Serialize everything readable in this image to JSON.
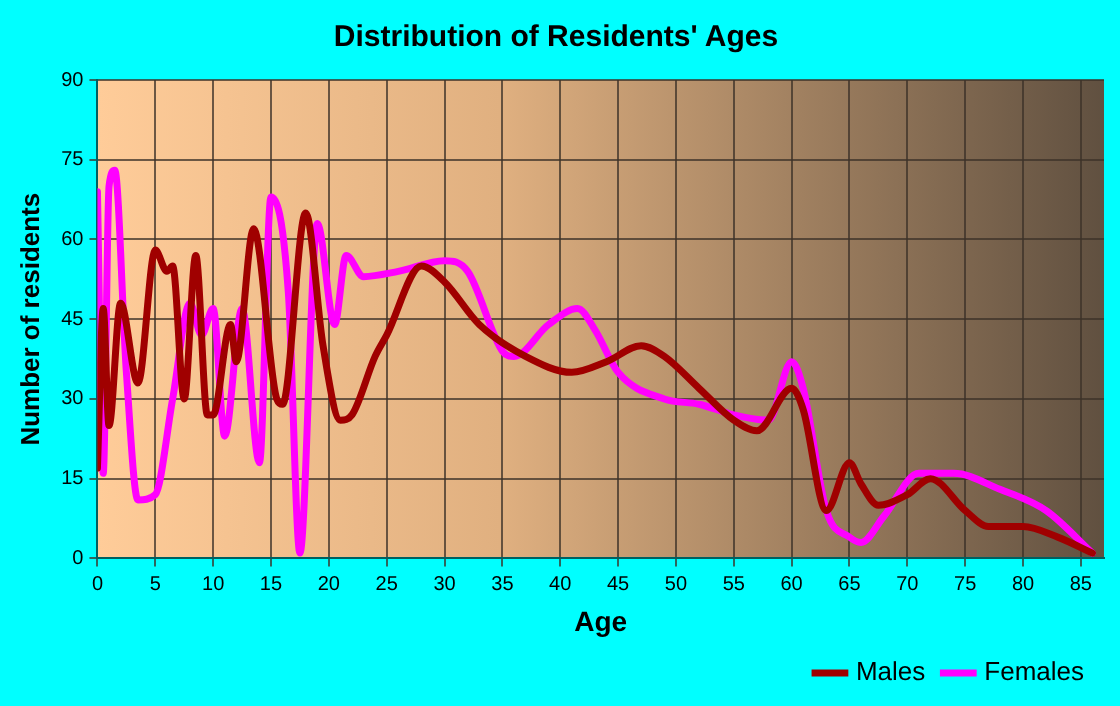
{
  "chart_data": {
    "type": "line",
    "title": "Distribution of Residents' Ages",
    "xlabel": "Age",
    "ylabel": "Number of residents",
    "xlim": [
      0,
      87
    ],
    "xticks": [
      0,
      5,
      10,
      15,
      20,
      25,
      30,
      35,
      40,
      45,
      50,
      55,
      60,
      65,
      70,
      75,
      80,
      85
    ],
    "ylim": [
      0,
      90
    ],
    "yticks": [
      0,
      15,
      30,
      45,
      60,
      75,
      90
    ],
    "grid": true,
    "legend": "bottom right",
    "marker": "none",
    "line_style": "solid",
    "series": [
      {
        "name": "Males",
        "color": "#a00000",
        "x": [
          0,
          0.5,
          1,
          2,
          3.5,
          5,
          6,
          6.5,
          7.5,
          8.5,
          9.5,
          10,
          11.5,
          12,
          13.5,
          15.5,
          16,
          18,
          19.5,
          21,
          22,
          24,
          25,
          28,
          30,
          33,
          37,
          41,
          44,
          47,
          49,
          52,
          55,
          57,
          60,
          61,
          63,
          65,
          66,
          67.5,
          70,
          72,
          75,
          77,
          80,
          83,
          86
        ],
        "values": [
          17,
          47,
          25,
          48,
          33,
          58,
          54,
          55,
          30,
          57,
          27,
          27,
          44,
          37,
          62,
          30,
          29,
          65,
          40,
          26,
          27,
          38,
          42,
          55,
          52,
          44,
          38,
          35,
          37,
          40,
          38,
          32,
          26,
          24,
          32,
          28,
          9,
          18,
          14,
          10,
          12,
          15,
          9,
          6,
          6,
          4,
          1
        ]
      },
      {
        "name": "Females",
        "color": "#ff00ff",
        "x": [
          0,
          0.5,
          1,
          1.5,
          2.5,
          3.5,
          5,
          6.5,
          8,
          9,
          10,
          11,
          12.5,
          14,
          15,
          16.5,
          17.5,
          19,
          20.5,
          21.5,
          23,
          26,
          30,
          32,
          35,
          36,
          39,
          41.5,
          43,
          45,
          49,
          52,
          55,
          58,
          60,
          61,
          63,
          65,
          66,
          68,
          71,
          74,
          78,
          82,
          86
        ],
        "values": [
          69,
          16,
          70,
          73,
          35,
          11,
          12,
          30,
          48,
          42,
          47,
          23,
          47,
          18,
          68,
          50,
          1,
          63,
          44,
          57,
          53,
          54,
          56,
          54,
          39,
          38,
          44,
          47,
          43,
          35,
          30,
          29,
          27,
          26,
          37,
          32,
          9,
          4,
          3,
          8,
          16,
          16,
          13,
          9,
          1
        ]
      }
    ]
  }
}
